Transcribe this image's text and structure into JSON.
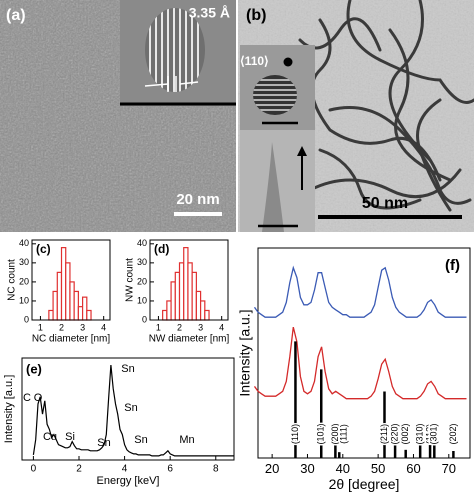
{
  "images": [
    {
      "label": "(a)",
      "lattice_spacing": "3.35 Å",
      "scale_bar": "20 nm"
    },
    {
      "label": "(b)",
      "direction": "⟨110⟩",
      "scale_bar": "50 nm"
    }
  ],
  "chart_data": [
    {
      "type": "histogram",
      "title": "(c)",
      "x_label": "NC diameter [nm]",
      "y_label": "NC count",
      "bins": [
        1.4,
        1.6,
        1.8,
        2.0,
        2.2,
        2.4,
        2.6,
        2.8,
        3.0,
        3.2,
        3.4
      ],
      "values": [
        5,
        15,
        25,
        38,
        30,
        20,
        15,
        7,
        12,
        5
      ],
      "color": "#e03030",
      "xlim": [
        0.6,
        4.3
      ],
      "xticks": [
        1,
        2,
        3,
        4
      ],
      "ylim": [
        0,
        42
      ],
      "yticks": [
        0,
        10,
        20,
        30,
        40
      ]
    },
    {
      "type": "histogram",
      "title": "(d)",
      "x_label": "NW diameter [nm]",
      "y_label": "NW count",
      "bins": [
        1.2,
        1.4,
        1.6,
        1.8,
        2.0,
        2.2,
        2.4,
        2.6,
        2.8,
        3.0,
        3.2,
        3.4
      ],
      "values": [
        5,
        10,
        20,
        25,
        30,
        38,
        30,
        25,
        15,
        10,
        5
      ],
      "color": "#e03030",
      "xlim": [
        0.6,
        4.3
      ],
      "xticks": [
        1,
        2,
        3,
        4
      ],
      "ylim": [
        0,
        42
      ],
      "yticks": [
        0,
        10,
        20,
        30,
        40
      ]
    },
    {
      "type": "line",
      "title": "(e)",
      "x_label": "Energy [keV]",
      "y_label": "Intensity [a.u.]",
      "x": [
        0.0,
        0.1,
        0.2,
        0.3,
        0.4,
        0.5,
        0.6,
        0.7,
        0.8,
        0.9,
        1.0,
        1.1,
        1.2,
        1.3,
        1.4,
        1.5,
        1.6,
        1.7,
        1.8,
        1.9,
        2.0,
        2.1,
        2.2,
        2.3,
        2.4,
        2.5,
        2.6,
        2.7,
        2.8,
        2.9,
        3.0,
        3.1,
        3.2,
        3.3,
        3.4,
        3.5,
        3.6,
        3.7,
        3.8,
        3.9,
        4.0,
        4.1,
        4.2,
        4.3,
        4.4,
        4.5,
        4.6,
        4.7,
        4.8,
        4.9,
        5.0,
        5.1,
        5.2,
        5.3,
        5.4,
        5.5,
        5.6,
        5.7,
        5.8,
        5.9,
        6.0,
        6.1,
        6.2,
        6.3,
        6.4,
        6.5,
        6.6,
        6.7,
        6.8,
        6.9,
        7.0,
        7.1,
        7.2,
        7.3,
        7.4,
        7.5,
        7.6,
        7.7,
        7.8,
        7.9,
        8.0,
        8.1,
        8.2,
        8.3,
        8.4,
        8.5,
        8.6,
        8.7,
        8.8
      ],
      "values": [
        0.05,
        0.2,
        0.55,
        0.62,
        0.45,
        0.58,
        0.35,
        0.3,
        0.22,
        0.25,
        0.2,
        0.15,
        0.14,
        0.13,
        0.12,
        0.12,
        0.13,
        0.18,
        0.14,
        0.11,
        0.11,
        0.1,
        0.1,
        0.1,
        0.1,
        0.09,
        0.09,
        0.09,
        0.09,
        0.1,
        0.12,
        0.15,
        0.25,
        0.6,
        0.93,
        0.7,
        0.55,
        0.45,
        0.3,
        0.25,
        0.15,
        0.1,
        0.08,
        0.07,
        0.06,
        0.06,
        0.05,
        0.05,
        0.05,
        0.05,
        0.05,
        0.05,
        0.04,
        0.04,
        0.04,
        0.04,
        0.05,
        0.05,
        0.07,
        0.09,
        0.06,
        0.05,
        0.04,
        0.04,
        0.04,
        0.04,
        0.04,
        0.04,
        0.04,
        0.04,
        0.04,
        0.04,
        0.04,
        0.04,
        0.04,
        0.04,
        0.04,
        0.04,
        0.04,
        0.04,
        0.04,
        0.04,
        0.04,
        0.04,
        0.04,
        0.04,
        0.04,
        0.04,
        0.04
      ],
      "color": "#000000",
      "xlim": [
        -0.5,
        8.8
      ],
      "xticks": [
        0,
        2,
        4,
        6,
        8
      ],
      "ylim": [
        0,
        1
      ],
      "annotations": [
        "C",
        "O",
        "Cu",
        "Si",
        "Sn",
        "Sn",
        "Sn",
        "Sn",
        "Mn"
      ]
    },
    {
      "type": "xrd",
      "title": "(f)",
      "x_label": "2θ [degree]",
      "y_label": "Intensity [a.u.]",
      "x": [
        15,
        16,
        17,
        18,
        19,
        20,
        21,
        22,
        23,
        24,
        25,
        26,
        27,
        28,
        29,
        30,
        31,
        32,
        33,
        34,
        35,
        36,
        37,
        38,
        39,
        40,
        41,
        42,
        43,
        44,
        45,
        46,
        47,
        48,
        49,
        50,
        51,
        52,
        53,
        54,
        55,
        56,
        57,
        58,
        59,
        60,
        61,
        62,
        63,
        64,
        65,
        66,
        67,
        68,
        69,
        70,
        71,
        72,
        73,
        74,
        75
      ],
      "series": [
        {
          "color": "#3b5bb5",
          "values": [
            0.76,
            0.74,
            0.73,
            0.72,
            0.72,
            0.72,
            0.72,
            0.73,
            0.74,
            0.78,
            0.86,
            0.92,
            0.88,
            0.8,
            0.77,
            0.77,
            0.78,
            0.83,
            0.9,
            0.9,
            0.84,
            0.78,
            0.76,
            0.75,
            0.74,
            0.73,
            0.73,
            0.72,
            0.72,
            0.72,
            0.72,
            0.72,
            0.73,
            0.74,
            0.77,
            0.84,
            0.91,
            0.92,
            0.87,
            0.8,
            0.76,
            0.74,
            0.73,
            0.72,
            0.72,
            0.72,
            0.72,
            0.73,
            0.75,
            0.78,
            0.79,
            0.77,
            0.74,
            0.73,
            0.72,
            0.72,
            0.72,
            0.72,
            0.72,
            0.72,
            0.72
          ]
        },
        {
          "color": "#d42a2a",
          "values": [
            0.44,
            0.42,
            0.41,
            0.4,
            0.4,
            0.4,
            0.4,
            0.41,
            0.42,
            0.46,
            0.56,
            0.68,
            0.62,
            0.48,
            0.42,
            0.41,
            0.42,
            0.46,
            0.56,
            0.6,
            0.5,
            0.43,
            0.41,
            0.42,
            0.41,
            0.4,
            0.39,
            0.39,
            0.39,
            0.39,
            0.39,
            0.39,
            0.39,
            0.4,
            0.42,
            0.47,
            0.53,
            0.55,
            0.5,
            0.44,
            0.41,
            0.4,
            0.39,
            0.39,
            0.39,
            0.39,
            0.39,
            0.4,
            0.42,
            0.45,
            0.46,
            0.44,
            0.41,
            0.4,
            0.39,
            0.39,
            0.39,
            0.39,
            0.39,
            0.39,
            0.39
          ]
        }
      ],
      "reference": {
        "x": [
          26.6,
          33.9,
          37.9,
          39.0,
          51.8,
          54.8,
          57.8,
          61.9,
          64.7,
          65.9,
          71.3
        ],
        "values": [
          100,
          76,
          22,
          5,
          57,
          15,
          7,
          13,
          12,
          14,
          6
        ],
        "color": "#000000",
        "labels": [
          "(110)",
          "(101)",
          "(200)",
          "(111)",
          "(211)",
          "(220)",
          "(002)",
          "(310)",
          "(112)",
          "(301)",
          "(202)"
        ]
      },
      "xlim": [
        16,
        76
      ],
      "xticks": [
        20,
        30,
        40,
        50,
        60,
        70
      ],
      "ylim": [
        0.15,
        1.0
      ],
      "y2lim": [
        0,
        180
      ]
    }
  ]
}
